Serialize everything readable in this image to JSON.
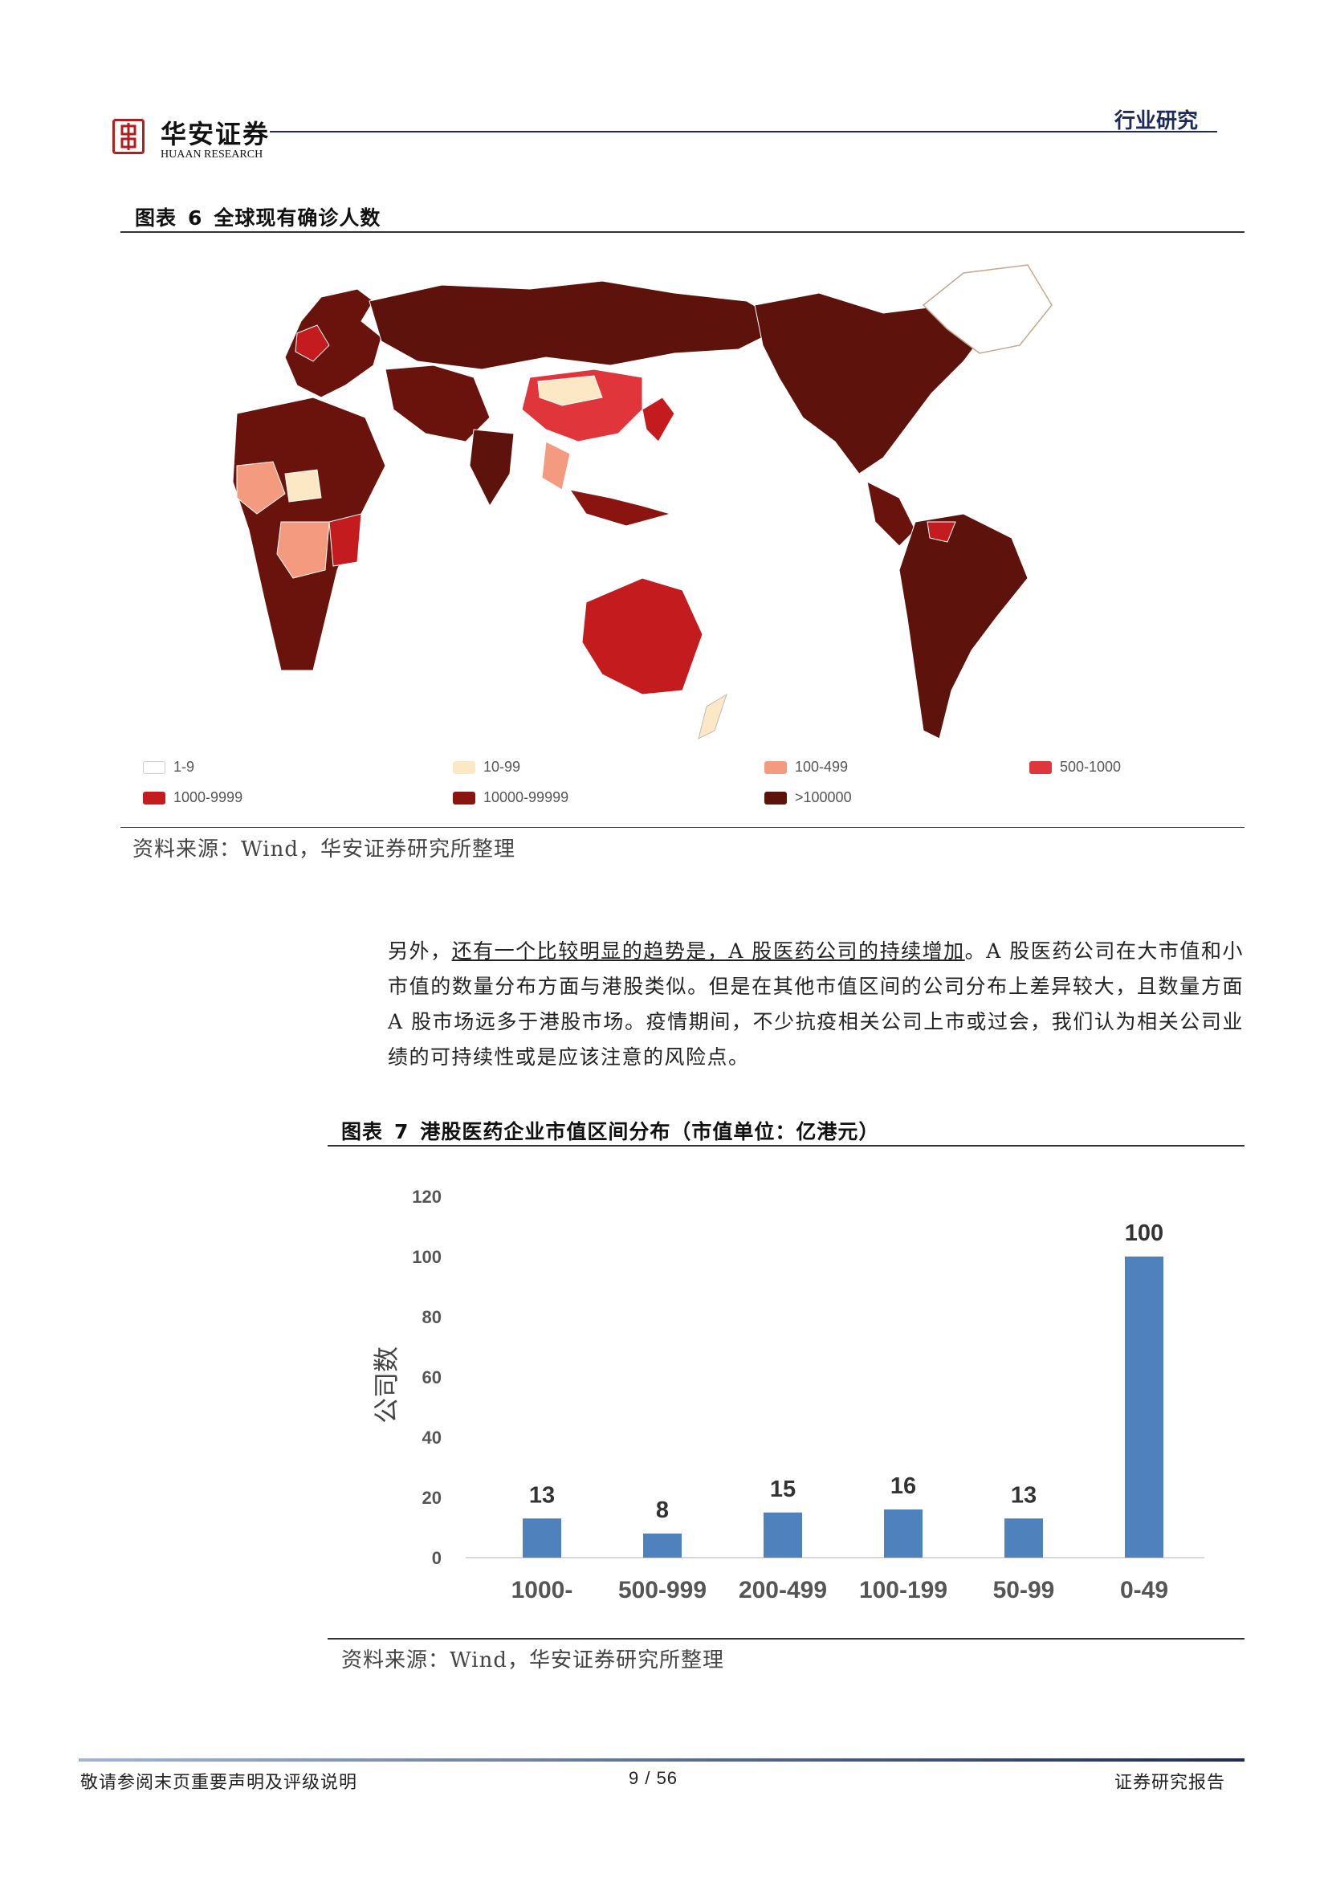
{
  "header": {
    "logo_cn": "华安证券",
    "logo_en": "HUAAN RESEARCH",
    "section_tag": "行业研究"
  },
  "figure6": {
    "label": "图表",
    "number": "6",
    "title": "全球现有确诊人数",
    "legend": [
      {
        "label": "1-9",
        "color": "#ffffff"
      },
      {
        "label": "10-99",
        "color": "#fde8c6"
      },
      {
        "label": "100-499",
        "color": "#f39a7f"
      },
      {
        "label": "500-1000",
        "color": "#e0353a"
      },
      {
        "label": "1000-9999",
        "color": "#c41b1e"
      },
      {
        "label": "10000-99999",
        "color": "#8a1510"
      },
      {
        "label": ">100000",
        "color": "#5d120b"
      }
    ],
    "source": "资料来源：Wind，华安证券研究所整理"
  },
  "paragraph": {
    "part1": "另外，",
    "underlined": "还有一个比较明显的趋势是，A 股医药公司的持续增加",
    "part2": "。A 股医药公司在大市值和小市值的数量分布方面与港股类似。但是在其他市值区间的公司分布上差异较大，且数量方面 A 股市场远多于港股市场。疫情期间，不少抗疫相关公司上市或过会，我们认为相关公司业绩的可持续性或是应该注意的风险点。"
  },
  "figure7": {
    "label": "图表",
    "number": "7",
    "title": "港股医药企业市值区间分布（市值单位：亿港元）",
    "source": "资料来源：Wind，华安证券研究所整理"
  },
  "chart_data": {
    "type": "bar",
    "title": "",
    "xlabel": "",
    "ylabel": "公司数",
    "categories": [
      "1000-",
      "500-999",
      "200-499",
      "100-199",
      "50-99",
      "0-49"
    ],
    "values": [
      13,
      8,
      15,
      16,
      13,
      100
    ],
    "ylim": [
      0,
      120
    ],
    "yticks": [
      0,
      20,
      40,
      60,
      80,
      100,
      120
    ],
    "grid": false,
    "bar_color": "#4f81bd",
    "data_labels": true
  },
  "footer": {
    "left": "敬请参阅末页重要声明及评级说明",
    "page": "9 / 56",
    "right": "证券研究报告"
  }
}
